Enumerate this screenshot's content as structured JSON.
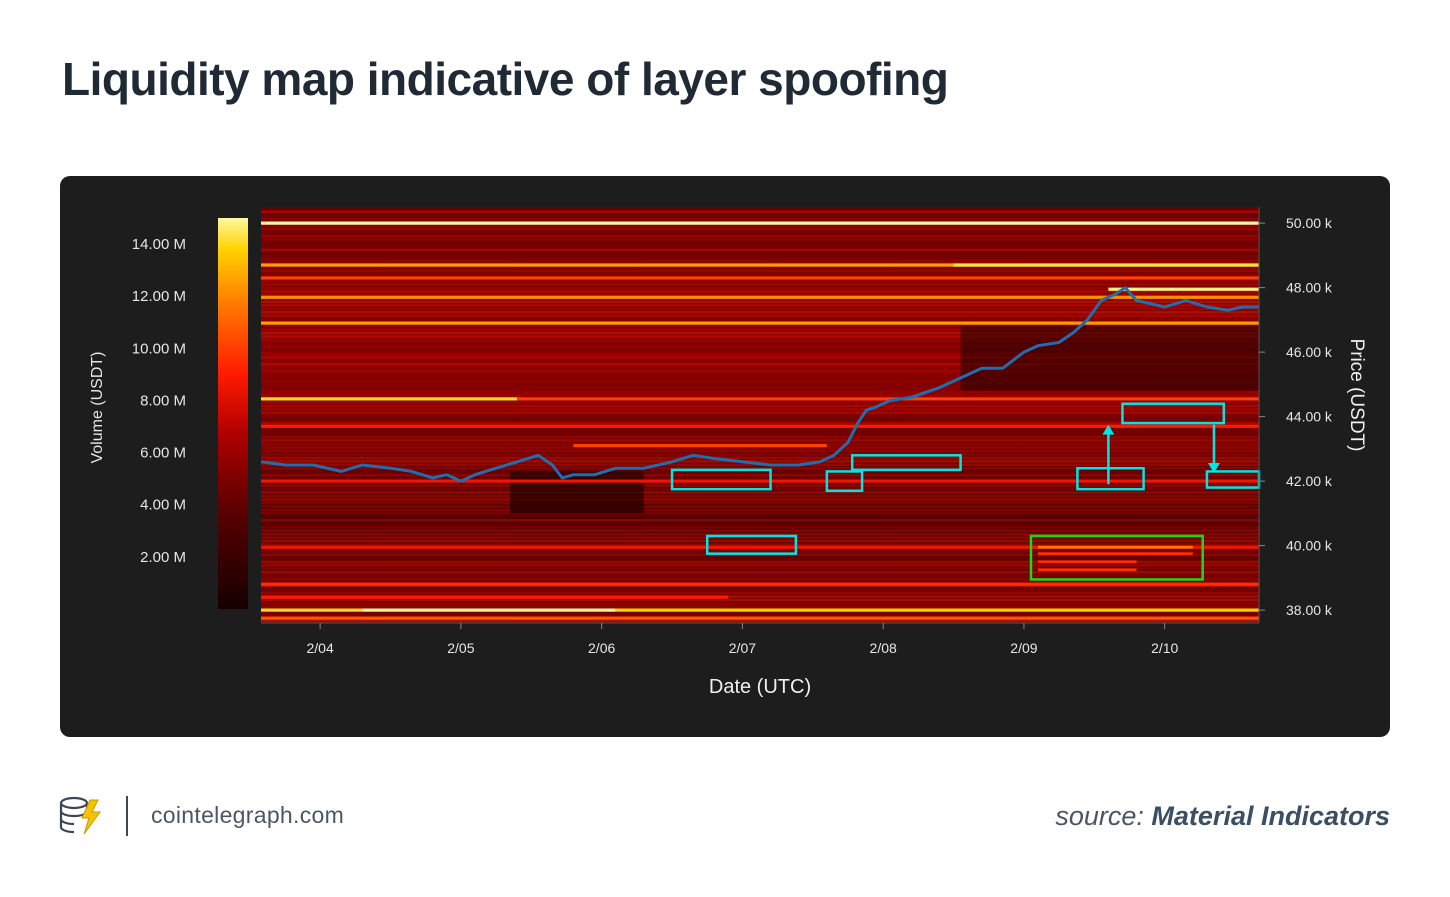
{
  "page": {
    "title": "Liquidity map indicative of layer spoofing",
    "footer_site": "cointelegraph.com",
    "source_prefix": "source:",
    "source_name": "Material Indicators"
  },
  "colors": {
    "panel_bg": "#1d1d1d",
    "heatmap_base": "#7a0000",
    "price_line": "#1f6fb0",
    "highlight_cyan": "#00e5e5",
    "highlight_green": "#19d919",
    "colorscale": [
      "#150000",
      "#5a0000",
      "#b00000",
      "#ff1a00",
      "#ff7a00",
      "#ffd200",
      "#fff8a0"
    ]
  },
  "chart_data": {
    "type": "heatmap",
    "title": "",
    "xlabel": "Date (UTC)",
    "ylabel_right": "Price (USDT)",
    "colorbar_label": "Volume (USDT)",
    "x_ticks": [
      "2/04",
      "2/05",
      "2/06",
      "2/07",
      "2/08",
      "2/09",
      "2/10"
    ],
    "y_ticks": [
      "38.00 k",
      "40.00 k",
      "42.00 k",
      "44.00 k",
      "46.00 k",
      "48.00 k",
      "50.00 k"
    ],
    "colorbar_ticks": [
      "2.00 M",
      "4.00 M",
      "6.00 M",
      "8.00 M",
      "10.00 M",
      "12.00 M",
      "14.00 M"
    ],
    "x_range": [
      3.58,
      10.67
    ],
    "y_range": [
      37.6,
      50.5
    ],
    "colorbar_range": [
      0,
      15
    ],
    "price_series": {
      "x": [
        3.58,
        3.75,
        3.95,
        4.15,
        4.3,
        4.5,
        4.65,
        4.8,
        4.9,
        5.0,
        5.1,
        5.25,
        5.4,
        5.55,
        5.65,
        5.72,
        5.8,
        5.95,
        6.1,
        6.3,
        6.5,
        6.65,
        6.8,
        7.0,
        7.2,
        7.4,
        7.55,
        7.65,
        7.75,
        7.82,
        7.88,
        7.95,
        8.05,
        8.2,
        8.4,
        8.55,
        8.7,
        8.85,
        9.0,
        9.1,
        9.25,
        9.35,
        9.45,
        9.55,
        9.65,
        9.72,
        9.8,
        9.9,
        10.0,
        10.15,
        10.3,
        10.45,
        10.55,
        10.67
      ],
      "y": [
        42.6,
        42.5,
        42.5,
        42.3,
        42.5,
        42.4,
        42.3,
        42.1,
        42.2,
        42.0,
        42.2,
        42.4,
        42.6,
        42.8,
        42.5,
        42.1,
        42.2,
        42.2,
        42.4,
        42.4,
        42.6,
        42.8,
        42.7,
        42.6,
        42.5,
        42.5,
        42.6,
        42.8,
        43.2,
        43.8,
        44.2,
        44.3,
        44.5,
        44.6,
        44.9,
        45.2,
        45.5,
        45.5,
        46.0,
        46.2,
        46.3,
        46.6,
        47.0,
        47.6,
        47.8,
        48.0,
        47.6,
        47.5,
        47.4,
        47.6,
        47.4,
        47.3,
        47.4,
        47.4
      ]
    },
    "liquidity_bands": [
      {
        "y": 50.0,
        "x0": 3.58,
        "x1": 10.67,
        "v": 15
      },
      {
        "y": 48.7,
        "x0": 3.58,
        "x1": 10.67,
        "v": 11
      },
      {
        "y": 48.7,
        "x0": 8.5,
        "x1": 10.67,
        "v": 13.5
      },
      {
        "y": 48.3,
        "x0": 3.58,
        "x1": 10.67,
        "v": 8.5
      },
      {
        "y": 47.95,
        "x0": 9.6,
        "x1": 10.67,
        "v": 14.5
      },
      {
        "y": 47.7,
        "x0": 3.58,
        "x1": 10.67,
        "v": 10.5
      },
      {
        "y": 46.9,
        "x0": 3.58,
        "x1": 10.67,
        "v": 11
      },
      {
        "y": 44.55,
        "x0": 3.58,
        "x1": 5.4,
        "v": 13
      },
      {
        "y": 44.55,
        "x0": 5.4,
        "x1": 10.67,
        "v": 8.5
      },
      {
        "y": 43.7,
        "x0": 3.58,
        "x1": 10.67,
        "v": 7.5
      },
      {
        "y": 43.1,
        "x0": 5.8,
        "x1": 7.6,
        "v": 8.5
      },
      {
        "y": 42.0,
        "x0": 3.58,
        "x1": 10.67,
        "v": 7
      },
      {
        "y": 39.95,
        "x0": 3.58,
        "x1": 10.67,
        "v": 7
      },
      {
        "y": 38.8,
        "x0": 3.58,
        "x1": 10.67,
        "v": 8
      },
      {
        "y": 38.4,
        "x0": 3.58,
        "x1": 6.9,
        "v": 7.5
      },
      {
        "y": 38.0,
        "x0": 3.58,
        "x1": 4.3,
        "v": 13
      },
      {
        "y": 38.0,
        "x0": 4.3,
        "x1": 6.1,
        "v": 15
      },
      {
        "y": 38.0,
        "x0": 6.1,
        "x1": 10.67,
        "v": 12.5
      },
      {
        "y": 37.75,
        "x0": 3.58,
        "x1": 10.67,
        "v": 9
      }
    ],
    "annotations": [
      {
        "kind": "cyan",
        "x0": 6.5,
        "x1": 7.2,
        "y0": 41.75,
        "y1": 42.35
      },
      {
        "kind": "cyan",
        "x0": 6.75,
        "x1": 7.38,
        "y0": 39.75,
        "y1": 40.3
      },
      {
        "kind": "cyan",
        "x0": 7.6,
        "x1": 7.85,
        "y0": 41.7,
        "y1": 42.3
      },
      {
        "kind": "cyan",
        "x0": 7.78,
        "x1": 8.55,
        "y0": 42.35,
        "y1": 42.8
      },
      {
        "kind": "cyan",
        "x0": 9.38,
        "x1": 9.85,
        "y0": 41.75,
        "y1": 42.4
      },
      {
        "kind": "cyan",
        "x0": 9.7,
        "x1": 10.42,
        "y0": 43.8,
        "y1": 44.4
      },
      {
        "kind": "cyan",
        "x0": 10.3,
        "x1": 10.67,
        "y0": 41.8,
        "y1": 42.3
      },
      {
        "kind": "green",
        "x0": 9.05,
        "x1": 10.27,
        "y0": 38.95,
        "y1": 40.3
      }
    ],
    "arrows": [
      {
        "x": 9.6,
        "y_from": 41.9,
        "y_to": 43.75
      },
      {
        "x": 10.35,
        "y_from": 43.75,
        "y_to": 42.25
      }
    ]
  }
}
